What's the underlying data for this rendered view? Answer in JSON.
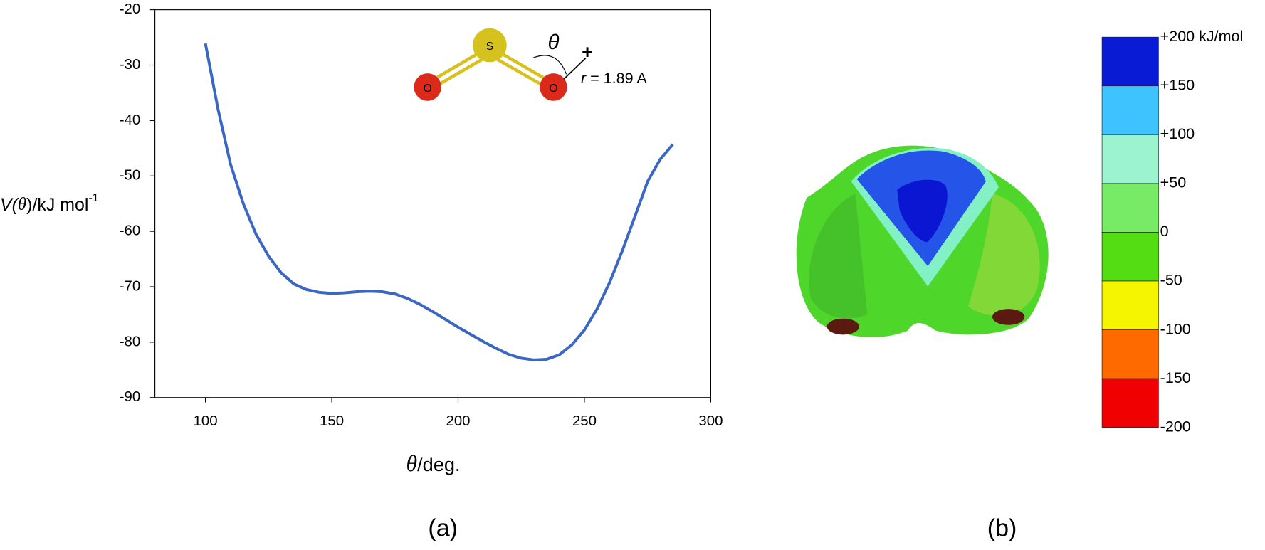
{
  "chart_data": [
    {
      "type": "line",
      "x": [
        100,
        105,
        110,
        115,
        120,
        125,
        130,
        135,
        140,
        145,
        150,
        155,
        160,
        165,
        170,
        175,
        180,
        185,
        190,
        195,
        200,
        205,
        210,
        215,
        220,
        225,
        230,
        235,
        240,
        245,
        250,
        255,
        260,
        265,
        270,
        275,
        280,
        285
      ],
      "series": [
        {
          "color": "#3a66c4",
          "values": [
            -26.1,
            -38,
            -48,
            -55,
            -60.5,
            -64.5,
            -67.5,
            -69.5,
            -70.5,
            -71,
            -71.2,
            -71.1,
            -70.9,
            -70.8,
            -70.9,
            -71.3,
            -72.1,
            -73.2,
            -74.5,
            -75.9,
            -77.3,
            -78.6,
            -79.9,
            -81.1,
            -82.2,
            -82.9,
            -83.2,
            -83.1,
            -82.3,
            -80.5,
            -77.8,
            -74,
            -69.2,
            -63.5,
            -57.3,
            -51,
            -47,
            -44.3
          ]
        }
      ],
      "xlim": [
        80,
        300
      ],
      "xticks": [
        100,
        150,
        200,
        250,
        300
      ],
      "ylim": [
        -90,
        -20
      ],
      "yticks": [
        -90,
        -80,
        -70,
        -60,
        -50,
        -40,
        -30,
        -20
      ],
      "xlabel": [
        "θ",
        "/deg."
      ],
      "ylabel": [
        "V(",
        "θ",
        ")/kJ mol",
        "-1"
      ],
      "inset": {
        "atoms": [
          "S",
          "O",
          "O"
        ],
        "angle_label": "θ",
        "marker": "+",
        "distance": [
          "r",
          " = 1.89 A"
        ]
      },
      "panel_label": "(a)"
    },
    {
      "type": "colorbar",
      "ticks": [
        {
          "value": 200,
          "label": "+200 kJ/mol"
        },
        {
          "value": 150,
          "label": "+150"
        },
        {
          "value": 100,
          "label": "+100"
        },
        {
          "value": 50,
          "label": "+50"
        },
        0,
        -50,
        -100,
        -150,
        -200
      ],
      "colors": [
        "#0a1bd6",
        "#3ec3ff",
        "#9cf3cf",
        "#77ea66",
        "#55dd14",
        "#f5f500",
        "#ff6a00",
        "#f00000"
      ],
      "panel_label": "(b)"
    }
  ]
}
